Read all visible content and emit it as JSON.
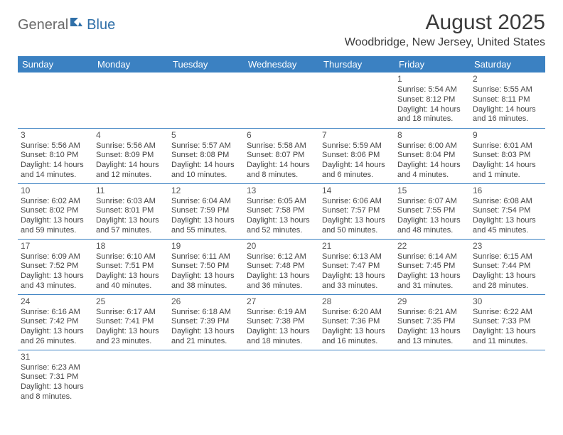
{
  "branding": {
    "text_general": "General",
    "text_blue": "Blue",
    "icon_color": "#2f6fa8"
  },
  "header": {
    "month_title": "August 2025",
    "location": "Woodbridge, New Jersey, United States"
  },
  "styling": {
    "header_bg": "#3b81c2",
    "header_text": "#ffffff",
    "cell_border": "#3b81c2",
    "body_text": "#444444",
    "page_bg": "#ffffff"
  },
  "weekdays": [
    "Sunday",
    "Monday",
    "Tuesday",
    "Wednesday",
    "Thursday",
    "Friday",
    "Saturday"
  ],
  "weeks": [
    [
      null,
      null,
      null,
      null,
      null,
      {
        "n": "1",
        "sr": "Sunrise: 5:54 AM",
        "ss": "Sunset: 8:12 PM",
        "dl1": "Daylight: 14 hours",
        "dl2": "and 18 minutes."
      },
      {
        "n": "2",
        "sr": "Sunrise: 5:55 AM",
        "ss": "Sunset: 8:11 PM",
        "dl1": "Daylight: 14 hours",
        "dl2": "and 16 minutes."
      }
    ],
    [
      {
        "n": "3",
        "sr": "Sunrise: 5:56 AM",
        "ss": "Sunset: 8:10 PM",
        "dl1": "Daylight: 14 hours",
        "dl2": "and 14 minutes."
      },
      {
        "n": "4",
        "sr": "Sunrise: 5:56 AM",
        "ss": "Sunset: 8:09 PM",
        "dl1": "Daylight: 14 hours",
        "dl2": "and 12 minutes."
      },
      {
        "n": "5",
        "sr": "Sunrise: 5:57 AM",
        "ss": "Sunset: 8:08 PM",
        "dl1": "Daylight: 14 hours",
        "dl2": "and 10 minutes."
      },
      {
        "n": "6",
        "sr": "Sunrise: 5:58 AM",
        "ss": "Sunset: 8:07 PM",
        "dl1": "Daylight: 14 hours",
        "dl2": "and 8 minutes."
      },
      {
        "n": "7",
        "sr": "Sunrise: 5:59 AM",
        "ss": "Sunset: 8:06 PM",
        "dl1": "Daylight: 14 hours",
        "dl2": "and 6 minutes."
      },
      {
        "n": "8",
        "sr": "Sunrise: 6:00 AM",
        "ss": "Sunset: 8:04 PM",
        "dl1": "Daylight: 14 hours",
        "dl2": "and 4 minutes."
      },
      {
        "n": "9",
        "sr": "Sunrise: 6:01 AM",
        "ss": "Sunset: 8:03 PM",
        "dl1": "Daylight: 14 hours",
        "dl2": "and 1 minute."
      }
    ],
    [
      {
        "n": "10",
        "sr": "Sunrise: 6:02 AM",
        "ss": "Sunset: 8:02 PM",
        "dl1": "Daylight: 13 hours",
        "dl2": "and 59 minutes."
      },
      {
        "n": "11",
        "sr": "Sunrise: 6:03 AM",
        "ss": "Sunset: 8:01 PM",
        "dl1": "Daylight: 13 hours",
        "dl2": "and 57 minutes."
      },
      {
        "n": "12",
        "sr": "Sunrise: 6:04 AM",
        "ss": "Sunset: 7:59 PM",
        "dl1": "Daylight: 13 hours",
        "dl2": "and 55 minutes."
      },
      {
        "n": "13",
        "sr": "Sunrise: 6:05 AM",
        "ss": "Sunset: 7:58 PM",
        "dl1": "Daylight: 13 hours",
        "dl2": "and 52 minutes."
      },
      {
        "n": "14",
        "sr": "Sunrise: 6:06 AM",
        "ss": "Sunset: 7:57 PM",
        "dl1": "Daylight: 13 hours",
        "dl2": "and 50 minutes."
      },
      {
        "n": "15",
        "sr": "Sunrise: 6:07 AM",
        "ss": "Sunset: 7:55 PM",
        "dl1": "Daylight: 13 hours",
        "dl2": "and 48 minutes."
      },
      {
        "n": "16",
        "sr": "Sunrise: 6:08 AM",
        "ss": "Sunset: 7:54 PM",
        "dl1": "Daylight: 13 hours",
        "dl2": "and 45 minutes."
      }
    ],
    [
      {
        "n": "17",
        "sr": "Sunrise: 6:09 AM",
        "ss": "Sunset: 7:52 PM",
        "dl1": "Daylight: 13 hours",
        "dl2": "and 43 minutes."
      },
      {
        "n": "18",
        "sr": "Sunrise: 6:10 AM",
        "ss": "Sunset: 7:51 PM",
        "dl1": "Daylight: 13 hours",
        "dl2": "and 40 minutes."
      },
      {
        "n": "19",
        "sr": "Sunrise: 6:11 AM",
        "ss": "Sunset: 7:50 PM",
        "dl1": "Daylight: 13 hours",
        "dl2": "and 38 minutes."
      },
      {
        "n": "20",
        "sr": "Sunrise: 6:12 AM",
        "ss": "Sunset: 7:48 PM",
        "dl1": "Daylight: 13 hours",
        "dl2": "and 36 minutes."
      },
      {
        "n": "21",
        "sr": "Sunrise: 6:13 AM",
        "ss": "Sunset: 7:47 PM",
        "dl1": "Daylight: 13 hours",
        "dl2": "and 33 minutes."
      },
      {
        "n": "22",
        "sr": "Sunrise: 6:14 AM",
        "ss": "Sunset: 7:45 PM",
        "dl1": "Daylight: 13 hours",
        "dl2": "and 31 minutes."
      },
      {
        "n": "23",
        "sr": "Sunrise: 6:15 AM",
        "ss": "Sunset: 7:44 PM",
        "dl1": "Daylight: 13 hours",
        "dl2": "and 28 minutes."
      }
    ],
    [
      {
        "n": "24",
        "sr": "Sunrise: 6:16 AM",
        "ss": "Sunset: 7:42 PM",
        "dl1": "Daylight: 13 hours",
        "dl2": "and 26 minutes."
      },
      {
        "n": "25",
        "sr": "Sunrise: 6:17 AM",
        "ss": "Sunset: 7:41 PM",
        "dl1": "Daylight: 13 hours",
        "dl2": "and 23 minutes."
      },
      {
        "n": "26",
        "sr": "Sunrise: 6:18 AM",
        "ss": "Sunset: 7:39 PM",
        "dl1": "Daylight: 13 hours",
        "dl2": "and 21 minutes."
      },
      {
        "n": "27",
        "sr": "Sunrise: 6:19 AM",
        "ss": "Sunset: 7:38 PM",
        "dl1": "Daylight: 13 hours",
        "dl2": "and 18 minutes."
      },
      {
        "n": "28",
        "sr": "Sunrise: 6:20 AM",
        "ss": "Sunset: 7:36 PM",
        "dl1": "Daylight: 13 hours",
        "dl2": "and 16 minutes."
      },
      {
        "n": "29",
        "sr": "Sunrise: 6:21 AM",
        "ss": "Sunset: 7:35 PM",
        "dl1": "Daylight: 13 hours",
        "dl2": "and 13 minutes."
      },
      {
        "n": "30",
        "sr": "Sunrise: 6:22 AM",
        "ss": "Sunset: 7:33 PM",
        "dl1": "Daylight: 13 hours",
        "dl2": "and 11 minutes."
      }
    ],
    [
      {
        "n": "31",
        "sr": "Sunrise: 6:23 AM",
        "ss": "Sunset: 7:31 PM",
        "dl1": "Daylight: 13 hours",
        "dl2": "and 8 minutes."
      },
      null,
      null,
      null,
      null,
      null,
      null
    ]
  ]
}
